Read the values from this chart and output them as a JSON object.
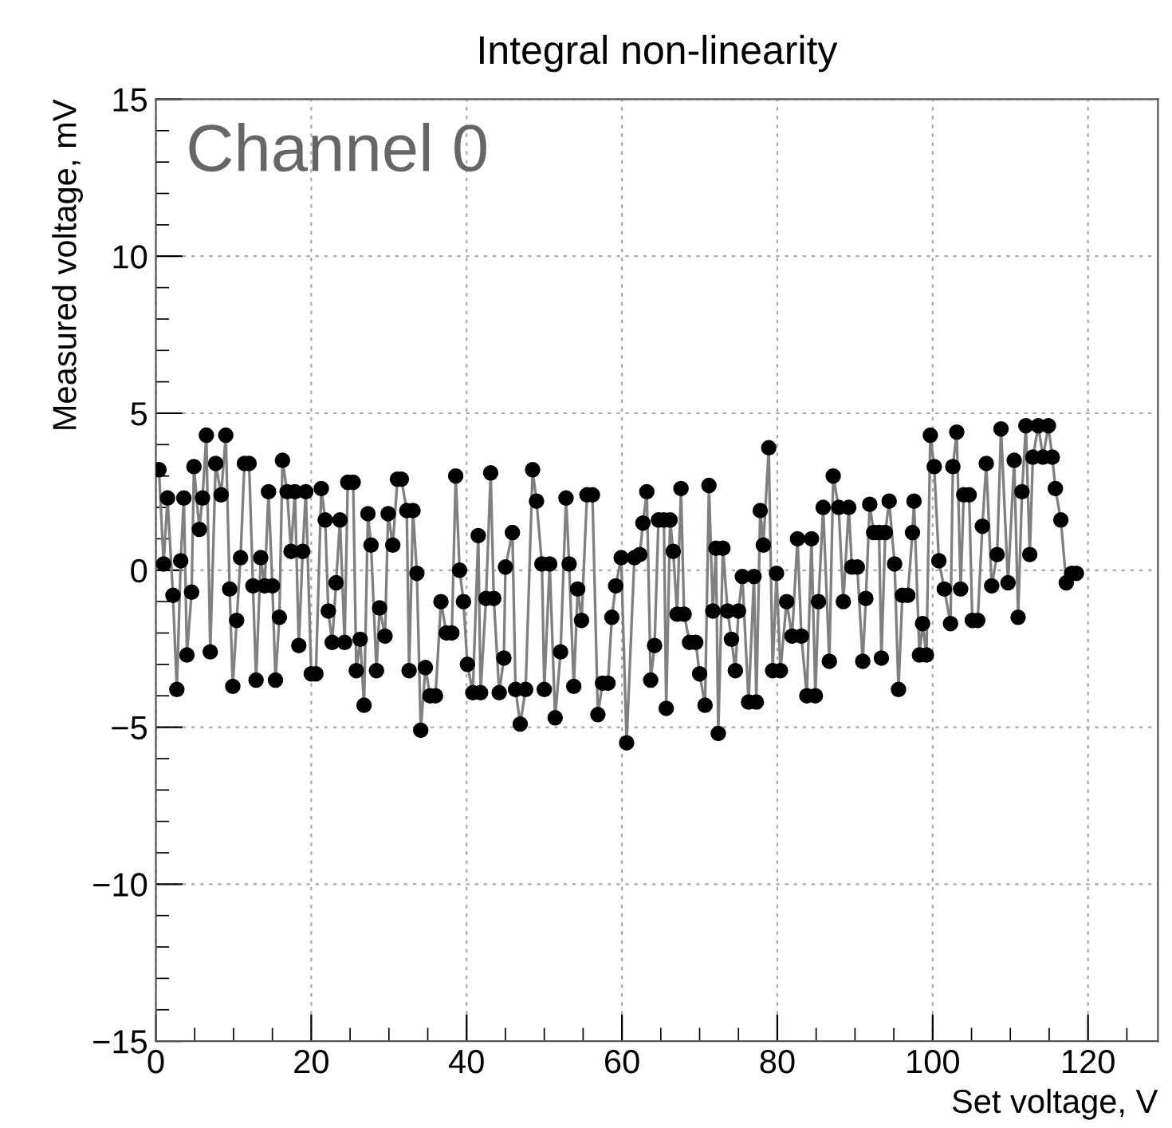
{
  "chart_data": {
    "type": "line",
    "title": "Integral non-linearity",
    "xlabel": "Set voltage, V",
    "ylabel": "Measured voltage, mV",
    "annotations": [
      "Channel 0"
    ],
    "xlim": [
      0,
      129
    ],
    "xticks": [
      0,
      20,
      40,
      60,
      80,
      100,
      120
    ],
    "ylim": [
      -15,
      15
    ],
    "yticks": [
      -15,
      -10,
      -5,
      0,
      5,
      10,
      15
    ],
    "grid": true,
    "marker": "circle",
    "line_style": "solid",
    "legend": false,
    "series": [
      {
        "color": "#000000",
        "x": [
          0.4,
          1.0,
          1.5,
          2.2,
          2.7,
          3.2,
          3.6,
          4.0,
          4.6,
          4.9,
          5.6,
          6.0,
          6.5,
          7.0,
          7.7,
          8.4,
          9.0,
          9.5,
          9.9,
          10.4,
          10.9,
          11.4,
          12.0,
          12.5,
          12.9,
          13.5,
          14.0,
          14.5,
          15.0,
          15.4,
          15.9,
          16.3,
          16.9,
          17.4,
          17.9,
          18.4,
          18.9,
          19.3,
          20.0,
          20.6,
          21.3,
          21.8,
          22.2,
          22.7,
          23.2,
          23.7,
          24.3,
          24.7,
          25.4,
          25.8,
          26.3,
          26.8,
          27.3,
          27.7,
          28.4,
          28.8,
          29.5,
          29.9,
          30.5,
          31.1,
          31.6,
          32.3,
          32.6,
          33.1,
          33.6,
          34.1,
          34.7,
          35.3,
          36.0,
          36.7,
          37.4,
          38.1,
          38.6,
          39.1,
          39.6,
          40.1,
          40.8,
          41.5,
          41.8,
          42.5,
          43.1,
          43.5,
          44.2,
          44.8,
          45.0,
          45.9,
          46.3,
          46.9,
          47.6,
          48.5,
          49.0,
          49.7,
          50.0,
          50.7,
          51.4,
          52.1,
          52.8,
          53.2,
          53.8,
          54.3,
          54.8,
          55.5,
          56.2,
          56.9,
          57.5,
          58.2,
          58.7,
          59.2,
          59.9,
          60.6,
          61.6,
          62.3,
          62.7,
          63.2,
          63.7,
          64.2,
          64.7,
          65.4,
          65.7,
          66.2,
          66.6,
          67.1,
          67.6,
          68.0,
          68.7,
          69.5,
          70.0,
          70.7,
          71.2,
          71.7,
          72.1,
          72.4,
          73.0,
          73.6,
          74.1,
          74.6,
          75.0,
          75.5,
          76.3,
          77.0,
          77.3,
          77.8,
          78.2,
          78.9,
          79.4,
          79.9,
          80.4,
          81.2,
          81.9,
          82.6,
          83.1,
          83.8,
          84.4,
          84.9,
          85.3,
          85.9,
          86.7,
          87.2,
          87.9,
          88.5,
          89.2,
          89.6,
          90.3,
          91.0,
          91.4,
          91.9,
          92.4,
          93.1,
          93.4,
          93.9,
          94.4,
          95.1,
          95.6,
          96.1,
          96.8,
          97.4,
          97.6,
          98.3,
          98.7,
          99.2,
          99.7,
          100.2,
          100.8,
          101.5,
          102.3,
          102.6,
          103.1,
          103.6,
          104.0,
          104.7,
          105.1,
          105.8,
          106.4,
          106.9,
          107.6,
          108.3,
          108.8,
          109.7,
          110.5,
          111.0,
          111.5,
          112.0,
          112.5,
          112.9,
          113.6,
          114.2,
          114.9,
          115.4,
          115.8,
          116.5,
          117.2,
          117.9,
          118.5
        ],
        "values": [
          3.2,
          0.2,
          2.3,
          -0.8,
          -3.8,
          0.3,
          2.3,
          -2.7,
          -0.7,
          3.3,
          1.3,
          2.3,
          4.3,
          -2.6,
          3.4,
          2.4,
          4.3,
          -0.6,
          -3.7,
          -1.6,
          0.4,
          3.4,
          3.4,
          -0.5,
          -3.5,
          0.4,
          -0.5,
          2.5,
          -0.5,
          -3.5,
          -1.5,
          3.5,
          2.5,
          0.6,
          2.5,
          -2.4,
          0.6,
          2.5,
          -3.3,
          -3.3,
          2.6,
          1.6,
          -1.3,
          -2.3,
          -0.4,
          1.6,
          -2.3,
          2.8,
          2.8,
          -3.2,
          -2.2,
          -4.3,
          1.8,
          0.8,
          -3.2,
          -1.2,
          -2.1,
          1.8,
          0.8,
          2.9,
          2.9,
          1.9,
          -3.2,
          1.9,
          -0.1,
          -5.1,
          -3.1,
          -4.0,
          -4.0,
          -1.0,
          -2.0,
          -2.0,
          3.0,
          0.0,
          -1.0,
          -3.0,
          -3.9,
          1.1,
          -3.9,
          -0.9,
          3.1,
          -0.9,
          -3.9,
          -2.8,
          0.1,
          1.2,
          -3.8,
          -4.9,
          -3.8,
          3.2,
          2.2,
          0.2,
          -3.8,
          0.2,
          -4.7,
          -2.6,
          2.3,
          0.2,
          -3.7,
          -0.6,
          -1.6,
          2.4,
          2.4,
          -4.6,
          -3.6,
          -3.6,
          -1.5,
          -0.5,
          0.4,
          -5.5,
          0.4,
          0.5,
          1.5,
          2.5,
          -3.5,
          -2.4,
          1.6,
          1.6,
          -4.4,
          1.6,
          0.6,
          -1.4,
          2.6,
          -1.4,
          -2.3,
          -2.3,
          -3.3,
          -4.3,
          2.7,
          -1.3,
          0.7,
          -5.2,
          0.7,
          -1.3,
          -2.2,
          -3.2,
          -1.3,
          -0.2,
          -4.2,
          -0.2,
          -4.2,
          1.9,
          0.8,
          3.9,
          -3.2,
          -0.1,
          -3.2,
          -1.0,
          -2.1,
          1.0,
          -2.1,
          -4.0,
          1.0,
          -4.0,
          -1.0,
          2.0,
          -2.9,
          3.0,
          2.0,
          -1.0,
          2.0,
          0.1,
          0.1,
          -2.9,
          -0.9,
          2.1,
          1.2,
          1.2,
          -2.8,
          1.2,
          2.2,
          0.2,
          -3.8,
          -0.8,
          -0.8,
          1.2,
          2.2,
          -2.7,
          -1.7,
          -2.7,
          4.3,
          3.3,
          0.3,
          -0.6,
          -1.7,
          3.3,
          4.4,
          -0.6,
          2.4,
          2.4,
          -1.6,
          -1.6,
          1.4,
          3.4,
          -0.5,
          0.5,
          4.5,
          -0.4,
          3.5,
          -1.5,
          2.5,
          4.6,
          0.5,
          3.6,
          4.6,
          3.6,
          4.6,
          3.6,
          2.6,
          1.6,
          -0.4,
          -0.1,
          -0.1
        ]
      }
    ]
  }
}
